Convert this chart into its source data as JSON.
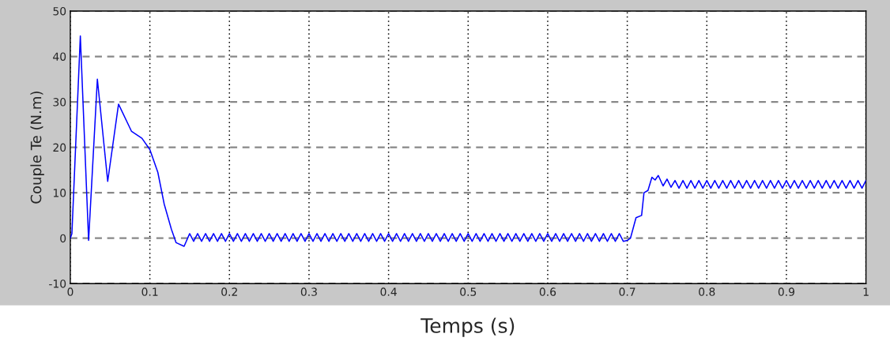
{
  "chart_data": {
    "type": "line",
    "xlabel": "Temps (s)",
    "ylabel": "Couple Te (N.m)",
    "xlim": [
      0,
      1
    ],
    "ylim": [
      -10,
      50
    ],
    "xticks": [
      0,
      0.1,
      0.2,
      0.3,
      0.4,
      0.5,
      0.6,
      0.7,
      0.8,
      0.9,
      1
    ],
    "yticks": [
      -10,
      0,
      10,
      20,
      30,
      40,
      50
    ],
    "grid": true,
    "series": [
      {
        "color": "#0000ff",
        "line_style": "solid",
        "marker": "none",
        "x": [
          0,
          0.002,
          0.0126,
          0.023,
          0.034,
          0.047,
          0.0606,
          0.077,
          0.09,
          0.1,
          0.11,
          0.118,
          0.127,
          0.133,
          0.143,
          0.15,
          0.155,
          0.16,
          0.165,
          0.17,
          0.175,
          0.18,
          0.185,
          0.19,
          0.195,
          0.2,
          0.205,
          0.21,
          0.215,
          0.22,
          0.225,
          0.23,
          0.235,
          0.24,
          0.245,
          0.25,
          0.255,
          0.26,
          0.265,
          0.27,
          0.275,
          0.28,
          0.285,
          0.29,
          0.295,
          0.3,
          0.305,
          0.31,
          0.315,
          0.32,
          0.325,
          0.33,
          0.335,
          0.34,
          0.345,
          0.35,
          0.355,
          0.36,
          0.365,
          0.37,
          0.375,
          0.38,
          0.385,
          0.39,
          0.395,
          0.4,
          0.405,
          0.41,
          0.415,
          0.42,
          0.425,
          0.43,
          0.435,
          0.44,
          0.445,
          0.45,
          0.455,
          0.46,
          0.465,
          0.47,
          0.475,
          0.48,
          0.485,
          0.49,
          0.495,
          0.5,
          0.505,
          0.51,
          0.515,
          0.52,
          0.525,
          0.53,
          0.535,
          0.54,
          0.545,
          0.55,
          0.555,
          0.56,
          0.565,
          0.57,
          0.575,
          0.58,
          0.585,
          0.59,
          0.595,
          0.6,
          0.605,
          0.61,
          0.615,
          0.62,
          0.625,
          0.63,
          0.635,
          0.64,
          0.645,
          0.65,
          0.655,
          0.66,
          0.665,
          0.67,
          0.675,
          0.68,
          0.685,
          0.69,
          0.695,
          0.7,
          0.704,
          0.711,
          0.718,
          0.721,
          0.726,
          0.731,
          0.735,
          0.739,
          0.745,
          0.75,
          0.755,
          0.76,
          0.765,
          0.77,
          0.775,
          0.78,
          0.785,
          0.79,
          0.795,
          0.8,
          0.805,
          0.81,
          0.815,
          0.82,
          0.825,
          0.83,
          0.835,
          0.84,
          0.845,
          0.85,
          0.855,
          0.86,
          0.865,
          0.87,
          0.875,
          0.88,
          0.885,
          0.89,
          0.895,
          0.9,
          0.905,
          0.91,
          0.915,
          0.92,
          0.925,
          0.93,
          0.935,
          0.94,
          0.945,
          0.95,
          0.955,
          0.96,
          0.965,
          0.97,
          0.975,
          0.98,
          0.985,
          0.99,
          0.995,
          1
        ],
        "values": [
          0,
          1,
          44.5,
          -0.5,
          35,
          12.5,
          29.5,
          23.5,
          22,
          19.5,
          14.5,
          7.5,
          2,
          -1,
          -1.8,
          1,
          -0.7,
          1,
          -0.7,
          1,
          -0.7,
          1,
          -0.7,
          1,
          -0.7,
          1,
          -0.7,
          1,
          -0.7,
          1,
          -0.7,
          1,
          -0.7,
          1,
          -0.7,
          1,
          -0.7,
          1,
          -0.7,
          1,
          -0.7,
          1,
          -0.7,
          1,
          -0.7,
          1,
          -0.7,
          1,
          -0.7,
          1,
          -0.7,
          1,
          -0.7,
          1,
          -0.7,
          1,
          -0.7,
          1,
          -0.7,
          1,
          -0.7,
          1,
          -0.7,
          1,
          -0.7,
          1,
          -0.7,
          1,
          -0.7,
          1,
          -0.7,
          1,
          -0.7,
          1,
          -0.7,
          1,
          -0.7,
          1,
          -0.7,
          1,
          -0.7,
          1,
          -0.7,
          1,
          -0.7,
          1,
          -0.7,
          1,
          -0.7,
          1,
          -0.7,
          1,
          -0.7,
          1,
          -0.7,
          1,
          -0.7,
          1,
          -0.7,
          1,
          -0.7,
          1,
          -0.7,
          1,
          -0.7,
          1,
          -0.7,
          1,
          -0.7,
          1,
          -0.7,
          1,
          -0.7,
          1,
          -0.7,
          1,
          -0.7,
          1,
          -0.7,
          1,
          -0.7,
          1,
          -0.7,
          1,
          -0.7,
          -0.5,
          0,
          4.5,
          5,
          10,
          10.5,
          13.4,
          12.8,
          13.8,
          11.5,
          13,
          11.2,
          12.7,
          11,
          12.7,
          11,
          12.7,
          11,
          12.7,
          11,
          12.7,
          11,
          12.7,
          11,
          12.7,
          11,
          12.7,
          11,
          12.7,
          11,
          12.7,
          11,
          12.7,
          11,
          12.7,
          11,
          12.7,
          11,
          12.7,
          11,
          12.7,
          11,
          12.7,
          11,
          12.7,
          11,
          12.7,
          11,
          12.7,
          11,
          12.7,
          11,
          12.7,
          11,
          12.7,
          11,
          12.7,
          11,
          12.7,
          11,
          12.7
        ]
      }
    ]
  }
}
